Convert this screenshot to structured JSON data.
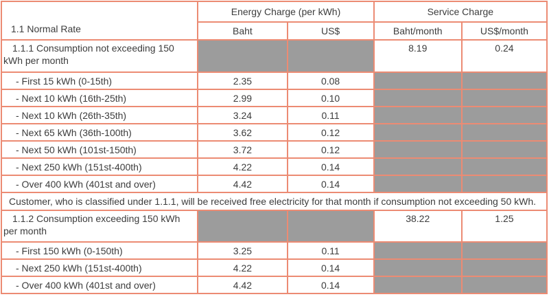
{
  "table": {
    "title": "1.1 Normal Rate",
    "groups": {
      "energy": "Energy Charge (per kWh)",
      "service": "Service Charge"
    },
    "columns": {
      "baht": "Baht",
      "usd": "US$",
      "baht_month": "Baht/month",
      "usd_month": "US$/month"
    },
    "rows": [
      {
        "label": "1.1.1 Consumption not exceeding 150 kWh per month",
        "baht_month": "8.19",
        "usd_month": "0.24"
      },
      {
        "label": "- First 15 kWh (0-15th)",
        "baht": "2.35",
        "usd": "0.08"
      },
      {
        "label": "- Next 10 kWh (16th-25th)",
        "baht": "2.99",
        "usd": "0.10"
      },
      {
        "label": "- Next 10 kWh (26th-35th)",
        "baht": "3.24",
        "usd": "0.11"
      },
      {
        "label": "- Next 65 kWh (36th-100th)",
        "baht": "3.62",
        "usd": "0.12"
      },
      {
        "label": "- Next 50 kWh (101st-150th)",
        "baht": "3.72",
        "usd": "0.12"
      },
      {
        "label": "- Next 250 kWh (151st-400th)",
        "baht": "4.22",
        "usd": "0.14"
      },
      {
        "label": "- Over 400 kWh (401st and over)",
        "baht": "4.42",
        "usd": "0.14"
      },
      {
        "note": "Customer, who is classified under 1.1.1, will be received free electricity for that month if consumption not exceeding 50 kWh."
      },
      {
        "label": "1.1.2 Consumption exceeding 150 kWh per month",
        "baht_month": "38.22",
        "usd_month": "1.25"
      },
      {
        "label": "- First 150 kWh (0-150th)",
        "baht": "3.25",
        "usd": "0.11"
      },
      {
        "label": "- Next 250 kWh (151st-400th)",
        "baht": "4.22",
        "usd": "0.14"
      },
      {
        "label": "- Over 400 kWh (401st and over)",
        "baht": "4.42",
        "usd": "0.14"
      }
    ]
  },
  "colors": {
    "border": "#ec8b73",
    "cell_gray": "#9c9c9c",
    "text": "#3c3c3c",
    "background": "#ffffff"
  }
}
